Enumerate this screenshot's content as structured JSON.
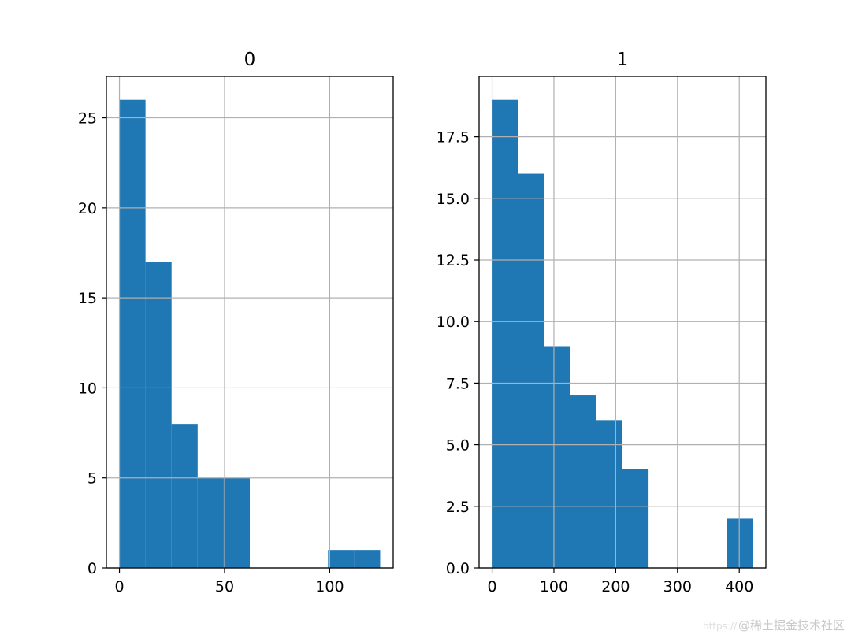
{
  "chart_data": [
    {
      "type": "bar",
      "title": "0",
      "bin_edges": [
        0,
        12.4,
        24.8,
        37.2,
        49.6,
        62,
        74.4,
        86.8,
        99.2,
        111.6,
        124
      ],
      "values": [
        26,
        17,
        8,
        5,
        5,
        0,
        0,
        0,
        1,
        1
      ],
      "xlim": [
        -6.2,
        130.2
      ],
      "ylim": [
        0,
        27.3
      ],
      "xticks": [
        0,
        50,
        100
      ],
      "xtick_labels": [
        "0",
        "50",
        "100"
      ],
      "yticks": [
        0,
        5,
        10,
        15,
        20,
        25
      ],
      "ytick_labels": [
        "0",
        "5",
        "10",
        "15",
        "20",
        "25"
      ],
      "grid": true,
      "color": "#1f77b4"
    },
    {
      "type": "bar",
      "title": "1",
      "bin_edges": [
        0,
        42.2,
        84.4,
        126.6,
        168.8,
        211,
        253.2,
        295.4,
        337.6,
        379.8,
        422
      ],
      "values": [
        19,
        16,
        9,
        7,
        6,
        4,
        0,
        0,
        0,
        2
      ],
      "xlim": [
        -21.1,
        443.1
      ],
      "ylim": [
        0,
        19.95
      ],
      "xticks": [
        0,
        100,
        200,
        300,
        400
      ],
      "xtick_labels": [
        "0",
        "100",
        "200",
        "300",
        "400"
      ],
      "yticks": [
        0,
        2.5,
        5,
        7.5,
        10,
        12.5,
        15,
        17.5
      ],
      "ytick_labels": [
        "0.0",
        "2.5",
        "5.0",
        "7.5",
        "10.0",
        "12.5",
        "15.0",
        "17.5"
      ],
      "grid": true,
      "color": "#1f77b4"
    }
  ],
  "watermark": {
    "prefix": "https://",
    "text": "@稀土掘金技术社区"
  }
}
